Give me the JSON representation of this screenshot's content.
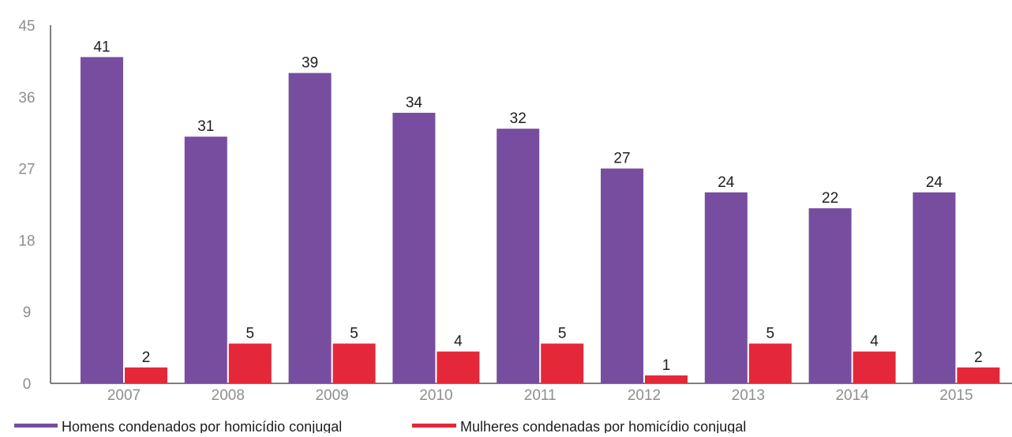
{
  "chart_data": {
    "type": "bar",
    "title": "",
    "xlabel": "",
    "ylabel": "",
    "categories": [
      "2007",
      "2008",
      "2009",
      "2010",
      "2011",
      "2012",
      "2013",
      "2014",
      "2015"
    ],
    "series": [
      {
        "name": "Homens condenados por homicídio conjugal",
        "color": "#774e9f",
        "values": [
          41,
          31,
          39,
          34,
          32,
          27,
          24,
          22,
          24
        ]
      },
      {
        "name": "Mulheres condenadas por homicídio conjugal",
        "color": "#e4283a",
        "values": [
          2,
          5,
          5,
          4,
          5,
          1,
          5,
          4,
          2
        ]
      }
    ],
    "ylim": [
      0,
      45
    ],
    "yticks": [
      0,
      9,
      18,
      27,
      36,
      45
    ],
    "grid": false,
    "legend_position": "bottom-left"
  }
}
